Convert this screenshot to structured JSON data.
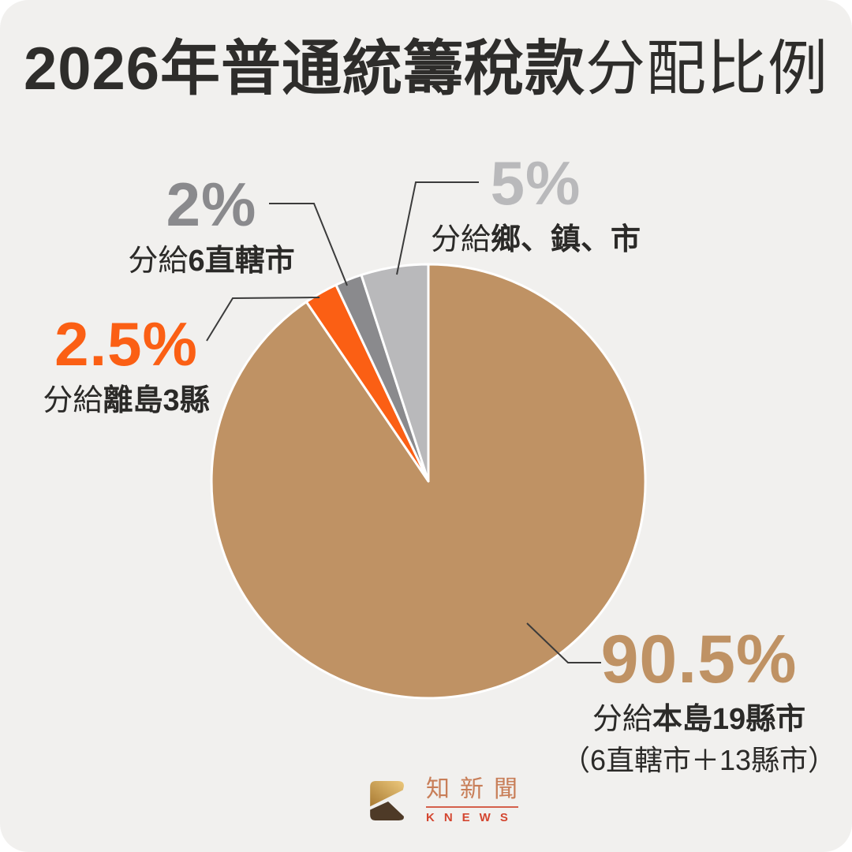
{
  "page": {
    "background": "#f1f0ee",
    "outside_corner_color": "#ffffff"
  },
  "title": {
    "strong": "2026年普通統籌稅款",
    "regular": "分配比例"
  },
  "chart_data": {
    "type": "pie",
    "title": "2026年普通統籌稅款分配比例",
    "start_angle_deg": 0,
    "direction": "clockwise",
    "separator_color": "#ffffff",
    "segments": [
      {
        "value": 90.5,
        "pct_label": "90.5%",
        "prefix": "分給",
        "bold": "本島19縣市",
        "note": "（6直轄市＋13縣市）",
        "label": "分給本島19縣市",
        "color": "#bf9264"
      },
      {
        "value": 2.5,
        "pct_label": "2.5%",
        "prefix": "分給",
        "bold": "離島3縣",
        "label": "分給離島3縣",
        "color": "#fb5f14"
      },
      {
        "value": 2,
        "pct_label": "2%",
        "prefix": "分給",
        "bold": "6直轄市",
        "label": "分給6直轄市",
        "color": "#8a8a8d"
      },
      {
        "value": 5,
        "pct_label": "5%",
        "prefix": "分給",
        "bold": "鄉、鎮、市",
        "label": "分給鄉、鎮、市",
        "color": "#b9b9bb"
      }
    ]
  },
  "logo": {
    "zh": "知新聞",
    "en": "KNEWS",
    "zh_color": "#c87e58",
    "en_color": "#d44630",
    "divider_color": "#d05038",
    "icon_gold_light": "#ecc87c",
    "icon_gold_dark": "#a87a33",
    "icon_brown": "#4e3a27"
  }
}
